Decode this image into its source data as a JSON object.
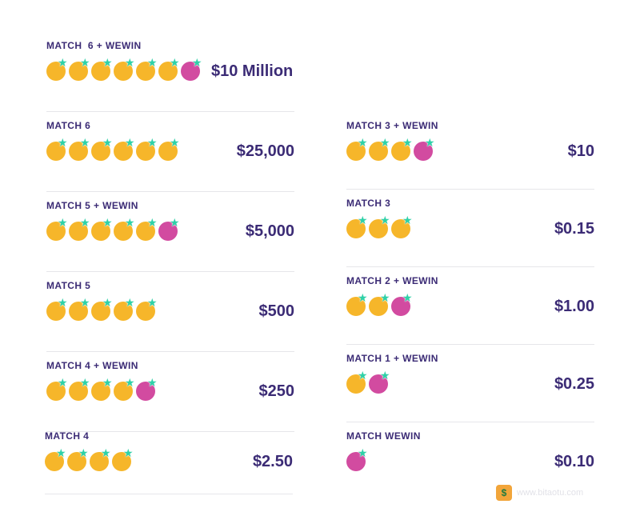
{
  "rows": [
    {
      "label": "MATCH  6 + WEWIN",
      "prize": "$10 Million",
      "balls": [
        "gold",
        "gold",
        "gold",
        "gold",
        "gold",
        "gold",
        "pink"
      ]
    },
    {
      "label": "MATCH 6",
      "prize": "$25,000",
      "balls": [
        "gold",
        "gold",
        "gold",
        "gold",
        "gold",
        "gold"
      ]
    },
    {
      "label": "MATCH 5 + WEWIN",
      "prize": "$5,000",
      "balls": [
        "gold",
        "gold",
        "gold",
        "gold",
        "gold",
        "pink"
      ]
    },
    {
      "label": "MATCH 5",
      "prize": "$500",
      "balls": [
        "gold",
        "gold",
        "gold",
        "gold",
        "gold"
      ]
    },
    {
      "label": "MATCH 4 + WEWIN",
      "prize": "$250",
      "balls": [
        "gold",
        "gold",
        "gold",
        "gold",
        "pink"
      ]
    },
    {
      "label": "MATCH 4",
      "prize": "$2.50",
      "balls": [
        "gold",
        "gold",
        "gold",
        "gold"
      ]
    },
    {
      "label": "MATCH 3 + WEWIN",
      "prize": "$10",
      "balls": [
        "gold",
        "gold",
        "gold",
        "pink"
      ]
    },
    {
      "label": "MATCH 3",
      "prize": "$0.15",
      "balls": [
        "gold",
        "gold",
        "gold"
      ]
    },
    {
      "label": "MATCH 2 + WEWIN",
      "prize": "$1.00",
      "balls": [
        "gold",
        "gold",
        "pink"
      ]
    },
    {
      "label": "MATCH 1 + WEWIN",
      "prize": "$0.25",
      "balls": [
        "gold",
        "pink"
      ]
    },
    {
      "label": "MATCH WEWIN",
      "prize": "$0.10",
      "balls": [
        "pink"
      ]
    }
  ],
  "colors": {
    "gold": "#f6b62a",
    "pink": "#d24ba0",
    "star": "#2fd1a8",
    "text": "#3b2b75"
  },
  "icons": {
    "ball_badge": "star-icon",
    "watermark": "money-bag-icon"
  },
  "watermark": {
    "text": "www.bitaotu.com"
  }
}
